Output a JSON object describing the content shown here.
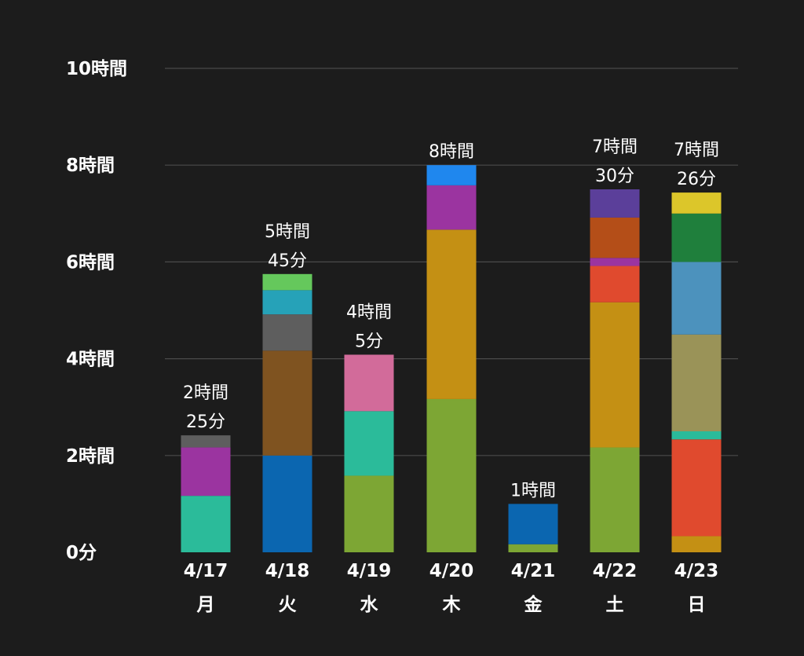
{
  "chart_data": {
    "type": "bar",
    "stacked": true,
    "grid": true,
    "ylim": [
      0,
      600
    ],
    "y_ticks": [
      {
        "value": 0,
        "label": "0分"
      },
      {
        "value": 120,
        "label": "2時間"
      },
      {
        "value": 240,
        "label": "4時間"
      },
      {
        "value": 360,
        "label": "6時間"
      },
      {
        "value": 480,
        "label": "8時間"
      },
      {
        "value": 600,
        "label": "10時間"
      }
    ],
    "categories": [
      {
        "date": "4/17",
        "day": "月",
        "total_lines": [
          "2時間",
          "25分"
        ]
      },
      {
        "date": "4/18",
        "day": "火",
        "total_lines": [
          "5時間",
          "45分"
        ]
      },
      {
        "date": "4/19",
        "day": "水",
        "total_lines": [
          "4時間",
          "5分"
        ]
      },
      {
        "date": "4/20",
        "day": "木",
        "total_lines": [
          "8時間"
        ]
      },
      {
        "date": "4/21",
        "day": "金",
        "total_lines": [
          "1時間"
        ]
      },
      {
        "date": "4/22",
        "day": "土",
        "total_lines": [
          "7時間",
          "30分"
        ]
      },
      {
        "date": "4/23",
        "day": "日",
        "total_lines": [
          "7時間",
          "26分"
        ]
      }
    ],
    "bars": [
      [
        {
          "value": 70,
          "color": "#2bbb9a"
        },
        {
          "value": 60,
          "color": "#9b34a0"
        },
        {
          "value": 15,
          "color": "#5e5e5e"
        }
      ],
      [
        {
          "value": 120,
          "color": "#0b66b0"
        },
        {
          "value": 130,
          "color": "#7f5320"
        },
        {
          "value": 45,
          "color": "#5e5e5e"
        },
        {
          "value": 30,
          "color": "#26a2b8"
        },
        {
          "value": 20,
          "color": "#65c85c"
        }
      ],
      [
        {
          "value": 95,
          "color": "#7da634"
        },
        {
          "value": 80,
          "color": "#2bbb9a"
        },
        {
          "value": 70,
          "color": "#d26b9a"
        }
      ],
      [
        {
          "value": 190,
          "color": "#7da634"
        },
        {
          "value": 210,
          "color": "#c49014"
        },
        {
          "value": 55,
          "color": "#9b34a0"
        },
        {
          "value": 25,
          "color": "#1f87ee"
        }
      ],
      [
        {
          "value": 10,
          "color": "#7da634"
        },
        {
          "value": 50,
          "color": "#0b66b0"
        }
      ],
      [
        {
          "value": 130,
          "color": "#7da634"
        },
        {
          "value": 180,
          "color": "#c49014"
        },
        {
          "value": 45,
          "color": "#e04a2e"
        },
        {
          "value": 10,
          "color": "#9b34a0"
        },
        {
          "value": 50,
          "color": "#b44e18"
        },
        {
          "value": 35,
          "color": "#5b3f9a"
        }
      ],
      [
        {
          "value": 20,
          "color": "#c49014"
        },
        {
          "value": 120,
          "color": "#e04a2e"
        },
        {
          "value": 10,
          "color": "#2bbb9a"
        },
        {
          "value": 120,
          "color": "#9a9358"
        },
        {
          "value": 90,
          "color": "#4c92bd"
        },
        {
          "value": 60,
          "color": "#1f7f3c"
        },
        {
          "value": 26,
          "color": "#dcc62a"
        }
      ]
    ]
  }
}
